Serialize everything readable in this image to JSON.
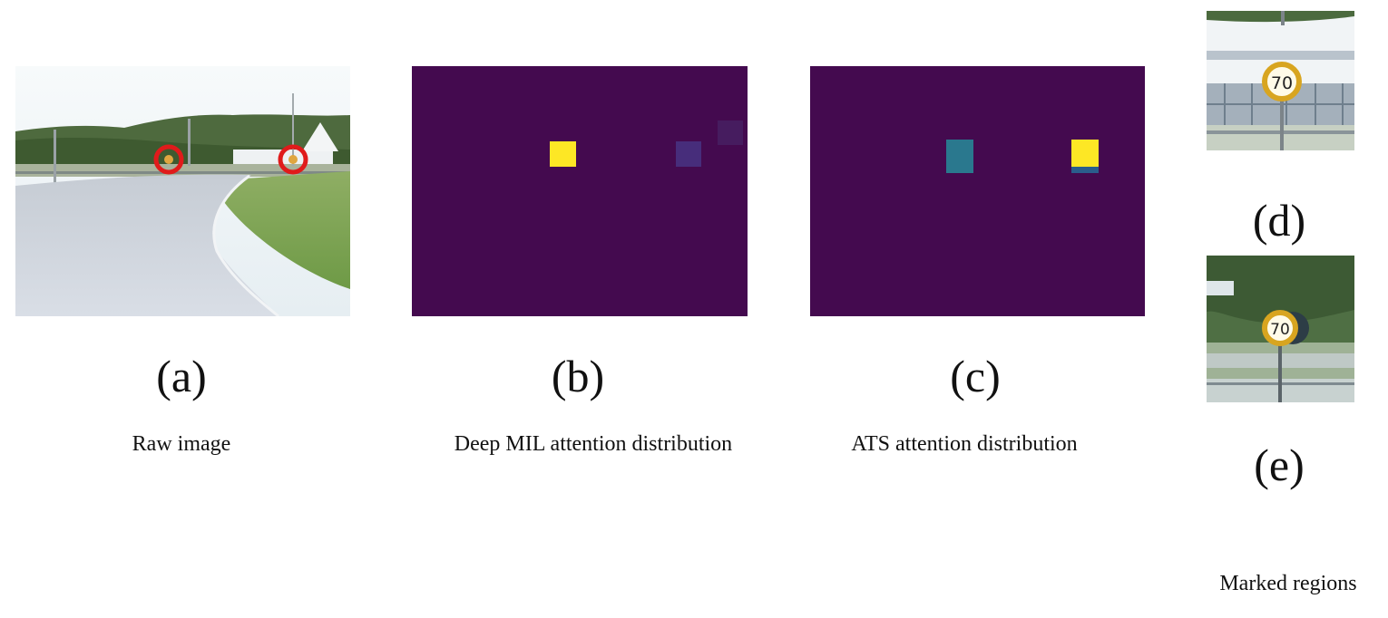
{
  "panels": {
    "a": {
      "letter": "(a)",
      "caption": "Raw image"
    },
    "b": {
      "letter": "(b)",
      "caption": "Deep MIL attention distribution"
    },
    "c": {
      "letter": "(c)",
      "caption": "ATS attention distribution"
    },
    "d": {
      "letter": "(d)",
      "sign_text": "70"
    },
    "e": {
      "letter": "(e)",
      "sign_text": "70"
    }
  },
  "marked_regions_caption": "Marked regions",
  "colors": {
    "heatmap_background": "#440a4f",
    "attention_high": "#fde725",
    "attention_medium": "#2a788e",
    "attention_low": "#472d7b",
    "attention_faint": "#461c5f",
    "marker_circle": "#e01b1b"
  }
}
